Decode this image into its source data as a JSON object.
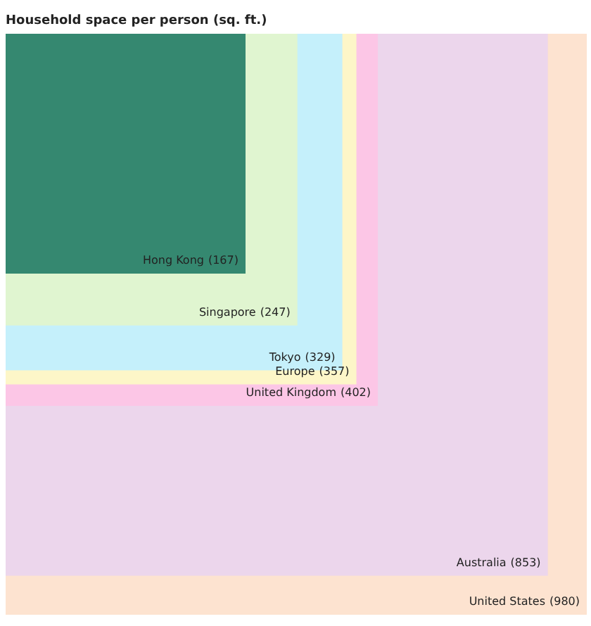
{
  "chart_data": {
    "type": "other",
    "title": "Household space per person (sq. ft.)",
    "categories": [
      "Hong Kong",
      "Singapore",
      "Tokyo",
      "Europe",
      "United Kingdom",
      "Australia",
      "United States"
    ],
    "values": [
      167,
      247,
      329,
      357,
      402,
      853,
      980
    ],
    "colors": [
      "#358870",
      "#e0f5d0",
      "#c5f0fb",
      "#fdf6c8",
      "#fcc6e6",
      "#ecd6ec",
      "#fde3d0"
    ],
    "value_labels": [
      "(167)",
      "(247)",
      "(329)",
      "(357)",
      "(402)",
      "(853)",
      "(980)"
    ],
    "data_labels": true
  }
}
